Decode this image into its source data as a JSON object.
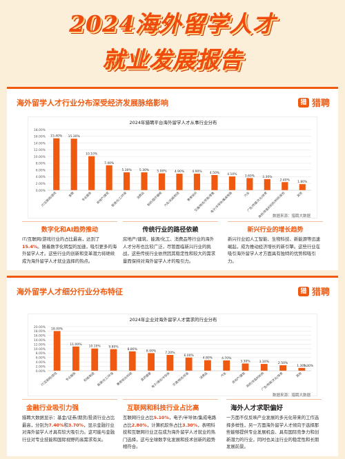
{
  "page": {
    "title_line1": "2024海外留学人才",
    "title_line2": "就业发展报告",
    "brand": "猎聘",
    "brand_icon": "猎"
  },
  "section1": {
    "heading": "海外留学人才行业分布深受经济发展脉络影响",
    "source": "数据来源：猎聘大数据",
    "cols": [
      {
        "title": "数字化和AI趋势推动",
        "body": "IT/互联网/游戏行业的占比最高，达到了15.4%。随着数字化转型的加速，吸引更多的海外留学人才。这些行业的创新和变革潜力将继续成为海外留学人才就业选择的热点。"
      },
      {
        "title": "传统行业的路径依赖",
        "body": "房地产/建筑、能源/化工、消费品等行业的海外人才分布也比较广泛，尽管面临新兴行业的挑战，这些传统行业依然因其稳定性和较大的需求量而保持对海外留学人才的吸引力。"
      },
      {
        "title": "新兴行业的增长趋势",
        "body": "新兴行业如人工智能、生物科技、新能源等迅速崛起，成为推动经济增长的新引擎。这些行业在吸引海外留学人才方面具有独特的优势和吸引力。"
      }
    ]
  },
  "section2": {
    "heading": "海外留学人才细分行业分布特征",
    "source": "数据来源：猎聘大数据",
    "cols": [
      {
        "title": "金融行业吸引力强",
        "body": "猎聘大数据显示：基金/证券/期货/投资行业占比最高，分别为7.40%和3.70%，显示金融行业对海外留学人才具有较大吸引力。这可能与金融行业对专业技能和国际视野的高需求有关。"
      },
      {
        "title": "互联网和科技行业占比高",
        "body": "互联网行业占比5.10%，电子/半导体/集成电路占比2.80%，计算机软件占比3.30%，表明科技和互联网行业正在成为海外留学人才就业的热门选择，这与全球数字化发展和技术创新的趋势相符合。"
      },
      {
        "title": "海外人才求职偏好",
        "body": "一方面不仅反映产业发展的多元化带来的工作选择多样性，另一方面海外留学人才倾向于选择那些能够提供专业发展机会、具有国际竞争力和创新潜力的行业，同时也关注行业的稳定性和长期发展前景。"
      }
    ]
  },
  "chart_data": [
    {
      "type": "bar",
      "title": "2024年猎聘平台海外留学人才从事行业分布",
      "categories": [
        "IT/互联网/游戏",
        "金融",
        "专业服务",
        "房地产/建筑",
        "能源/化工/环保",
        "消费品",
        "制药/医疗器械",
        "汽车/机械/制造",
        "教育培训",
        "交通/物流/贸易/零售",
        "电子/半导体/集成电路",
        "汽车",
        "广告/传媒/文化/体育",
        "政府/非盈利机构/科研/其他",
        "其他"
      ],
      "values": [
        15.4,
        15.3,
        10.1,
        7.4,
        5.3,
        5.3,
        5.0,
        4.9,
        4.9,
        4.5,
        4.1,
        3.6,
        3.3,
        2.4,
        1.8
      ],
      "labels": [
        "15.40%",
        "15.30%",
        "10.10%",
        "7.40%",
        "5.30%",
        "5.30%",
        "5.00%",
        "4.90%",
        "4.90%",
        "4.50%",
        "4.10%",
        "3.60%",
        "3.30%",
        "2.40%",
        "1.80%"
      ],
      "ylim": [
        0,
        18
      ],
      "ticks": [
        "0.00%",
        "2.00%",
        "4.00%",
        "6.00%",
        "8.00%",
        "10.00%",
        "12.00%",
        "14.00%",
        "16.00%",
        "18.00%"
      ],
      "bar_color": "#f05a10",
      "grid": true
    },
    {
      "type": "bar",
      "title": "2024年企业对海外留学人才需求的行业分布",
      "categories": [
        "IT/互联网/游戏",
        "专业服务",
        "机械/制造",
        "能源/化工/环保",
        "教育培训/科研",
        "医药健康",
        "电子/通信/半导体",
        "交通/物流/贸易",
        "消费品",
        "汽车",
        "房地产/建筑",
        "政府/非盈利机构",
        "广告/传媒/文化/体育",
        "其他"
      ],
      "values": [
        18.0,
        11.0,
        10.1,
        9.8,
        8.8,
        8.0,
        7.2,
        6.0,
        4.8,
        4.7,
        3.3,
        3.1,
        2.5,
        1.3
      ],
      "labels": [
        "18.00%",
        "11.00%",
        "10.10%",
        "9.80%",
        "8.80%",
        "8.00%",
        "7.20%",
        "6.00%",
        "4.80%",
        "4.70%",
        "3.30%",
        "3.10%",
        "2.50%",
        "1.30%"
      ],
      "extra_label": "1.30%",
      "ylim": [
        0,
        20
      ],
      "ticks": [
        "0.00%",
        "2.00%",
        "4.00%",
        "6.00%",
        "8.00%",
        "10.00%",
        "12.00%",
        "14.00%",
        "16.00%",
        "18.00%",
        "20.00%"
      ],
      "bar_color": "#f05a10",
      "grid": true
    }
  ]
}
